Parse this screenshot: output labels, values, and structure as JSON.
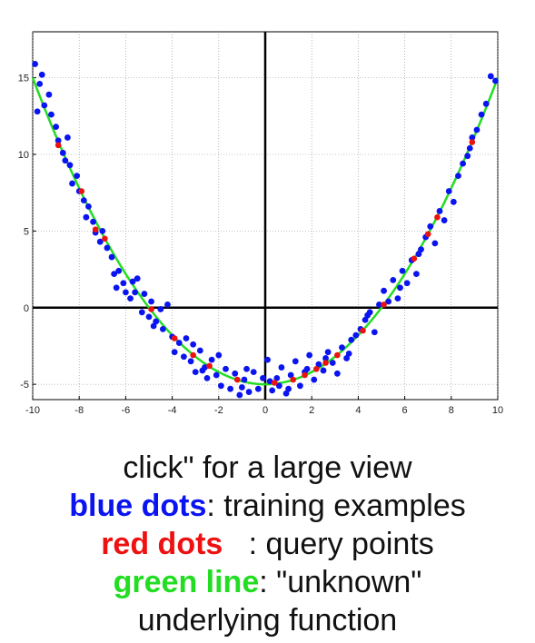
{
  "chart_data": {
    "type": "scatter",
    "title": "",
    "xlabel": "",
    "ylabel": "",
    "xlim": [
      -10,
      10
    ],
    "ylim": [
      -6,
      18
    ],
    "xticks": [
      "-10",
      "-8",
      "-6",
      "-4",
      "-2",
      "0",
      "2",
      "4",
      "6",
      "8",
      "10"
    ],
    "yticks": [
      "-5",
      "0",
      "5",
      "10",
      "15"
    ],
    "grid": true,
    "colors": {
      "training": "#0a14f0",
      "query": "#ee1111",
      "function": "#22dd22",
      "axes": "#000000"
    },
    "function": {
      "expression": "0.2*x^2 - 5",
      "samples": 201
    },
    "series": [
      {
        "role": "training",
        "points": [
          [
            -9.9,
            15.9
          ],
          [
            -9.7,
            14.6
          ],
          [
            -9.8,
            12.8
          ],
          [
            -9.5,
            13.2
          ],
          [
            -9.3,
            13.9
          ],
          [
            -9.2,
            12.6
          ],
          [
            -9.0,
            11.8
          ],
          [
            -8.9,
            10.9
          ],
          [
            -8.7,
            10.1
          ],
          [
            -8.5,
            11.1
          ],
          [
            -8.4,
            9.3
          ],
          [
            -8.3,
            8.1
          ],
          [
            -8.1,
            8.6
          ],
          [
            -8.0,
            7.6
          ],
          [
            -7.8,
            7.0
          ],
          [
            -7.6,
            6.6
          ],
          [
            -7.4,
            5.6
          ],
          [
            -7.3,
            4.9
          ],
          [
            -7.1,
            4.3
          ],
          [
            -7.0,
            5.0
          ],
          [
            -6.8,
            3.9
          ],
          [
            -6.6,
            3.3
          ],
          [
            -6.5,
            2.2
          ],
          [
            -6.3,
            2.4
          ],
          [
            -6.1,
            1.6
          ],
          [
            -6.0,
            1.0
          ],
          [
            -5.8,
            0.6
          ],
          [
            -5.7,
            1.7
          ],
          [
            -5.5,
            1.9
          ],
          [
            -5.3,
            -0.3
          ],
          [
            -5.2,
            0.9
          ],
          [
            -5.0,
            -0.6
          ],
          [
            -4.9,
            0.4
          ],
          [
            -4.7,
            -0.9
          ],
          [
            -4.5,
            -0.1
          ],
          [
            -4.4,
            -1.4
          ],
          [
            -4.2,
            0.2
          ],
          [
            -4.0,
            -1.9
          ],
          [
            -3.9,
            -2.9
          ],
          [
            -3.7,
            -2.3
          ],
          [
            -3.5,
            -3.2
          ],
          [
            -3.4,
            -2.0
          ],
          [
            -3.2,
            -3.5
          ],
          [
            -3.0,
            -4.2
          ],
          [
            -2.8,
            -2.8
          ],
          [
            -2.6,
            -3.9
          ],
          [
            -2.5,
            -4.6
          ],
          [
            -2.3,
            -3.4
          ],
          [
            -2.1,
            -4.4
          ],
          [
            -1.9,
            -5.1
          ],
          [
            -1.7,
            -4.0
          ],
          [
            -1.5,
            -5.3
          ],
          [
            -1.3,
            -4.3
          ],
          [
            -1.1,
            -5.7
          ],
          [
            -0.9,
            -4.7
          ],
          [
            -0.7,
            -5.5
          ],
          [
            -0.5,
            -4.2
          ],
          [
            -0.3,
            -5.3
          ],
          [
            -0.1,
            -4.6
          ],
          [
            0.1,
            -3.4
          ],
          [
            0.3,
            -5.4
          ],
          [
            0.5,
            -4.6
          ],
          [
            0.7,
            -3.9
          ],
          [
            0.9,
            -5.6
          ],
          [
            1.1,
            -4.4
          ],
          [
            1.3,
            -3.5
          ],
          [
            1.5,
            -5.1
          ],
          [
            1.7,
            -4.2
          ],
          [
            1.9,
            -3.1
          ],
          [
            2.1,
            -4.7
          ],
          [
            2.3,
            -3.7
          ],
          [
            2.5,
            -4.1
          ],
          [
            2.7,
            -2.9
          ],
          [
            2.9,
            -3.6
          ],
          [
            3.1,
            -4.3
          ],
          [
            3.3,
            -2.6
          ],
          [
            3.5,
            -3.3
          ],
          [
            3.7,
            -2.1
          ],
          [
            3.9,
            -1.8
          ],
          [
            4.1,
            -1.4
          ],
          [
            4.3,
            -0.8
          ],
          [
            4.5,
            -0.3
          ],
          [
            4.7,
            -1.6
          ],
          [
            4.9,
            0.2
          ],
          [
            5.1,
            1.1
          ],
          [
            5.3,
            0.4
          ],
          [
            5.5,
            1.8
          ],
          [
            5.7,
            0.6
          ],
          [
            5.9,
            2.4
          ],
          [
            6.1,
            1.6
          ],
          [
            6.3,
            3.1
          ],
          [
            6.5,
            2.2
          ],
          [
            6.7,
            3.8
          ],
          [
            6.9,
            4.6
          ],
          [
            7.1,
            5.3
          ],
          [
            7.3,
            4.2
          ],
          [
            7.5,
            6.3
          ],
          [
            7.7,
            5.7
          ],
          [
            7.9,
            7.6
          ],
          [
            8.1,
            6.9
          ],
          [
            8.3,
            8.6
          ],
          [
            8.5,
            9.4
          ],
          [
            8.7,
            9.9
          ],
          [
            8.9,
            11.1
          ],
          [
            9.1,
            11.6
          ],
          [
            9.3,
            12.6
          ],
          [
            9.5,
            13.3
          ],
          [
            9.7,
            15.1
          ],
          [
            9.9,
            14.8
          ],
          [
            -9.6,
            15.2
          ],
          [
            -4.8,
            -1.2
          ],
          [
            -3.1,
            -2.4
          ],
          [
            -2.0,
            -3.1
          ],
          [
            -1.0,
            -5.2
          ],
          [
            0.6,
            -5.1
          ],
          [
            1.8,
            -4.0
          ],
          [
            2.6,
            -3.3
          ],
          [
            3.6,
            -3.0
          ],
          [
            4.4,
            -0.5
          ],
          [
            5.8,
            1.3
          ],
          [
            -6.4,
            1.3
          ],
          [
            -5.6,
            1.0
          ],
          [
            -7.7,
            5.9
          ],
          [
            -8.6,
            9.6
          ],
          [
            6.6,
            3.5
          ],
          [
            8.8,
            10.4
          ],
          [
            -0.8,
            -4.0
          ],
          [
            0.2,
            -4.8
          ],
          [
            1.0,
            -5.3
          ],
          [
            -2.7,
            -4.1
          ]
        ]
      },
      {
        "role": "query",
        "points": [
          [
            -8.9,
            10.6
          ],
          [
            -7.9,
            7.6
          ],
          [
            -7.3,
            5.1
          ],
          [
            -6.9,
            4.5
          ],
          [
            -4.9,
            -0.1
          ],
          [
            -3.9,
            -2.0
          ],
          [
            -3.1,
            -3.1
          ],
          [
            -2.4,
            -3.8
          ],
          [
            -1.2,
            -4.7
          ],
          [
            0.4,
            -4.9
          ],
          [
            1.2,
            -4.7
          ],
          [
            1.7,
            -4.4
          ],
          [
            2.2,
            -4.0
          ],
          [
            2.6,
            -3.6
          ],
          [
            3.1,
            -3.1
          ],
          [
            4.2,
            -1.5
          ],
          [
            5.1,
            0.2
          ],
          [
            6.4,
            3.2
          ],
          [
            7.0,
            4.8
          ],
          [
            7.4,
            5.9
          ],
          [
            8.9,
            10.8
          ]
        ]
      }
    ]
  },
  "caption": {
    "line1": "click\" for a large view",
    "blue_word": "blue dots",
    "blue_rest": ": training examples",
    "red_word": "red dots",
    "red_rest": "   : query points",
    "green_word": "green line",
    "green_rest": ": \"unknown\"",
    "line5": "underlying function"
  }
}
